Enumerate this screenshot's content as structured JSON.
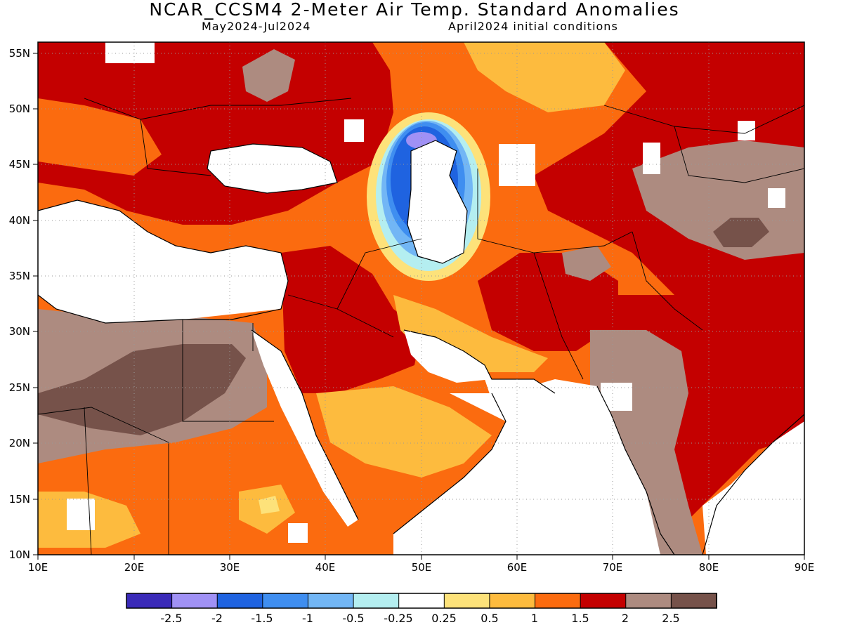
{
  "header": {
    "title": "NCAR_CCSM4 2-Meter Air Temp. Standard Anomalies",
    "period": "May2024-Jul2024",
    "init": "April2024 initial conditions"
  },
  "map": {
    "lon_range": [
      10,
      90
    ],
    "lat_range": [
      10,
      56
    ],
    "lon_ticks": [
      "10E",
      "20E",
      "30E",
      "40E",
      "50E",
      "60E",
      "70E",
      "80E",
      "90E"
    ],
    "lat_ticks": [
      "10N",
      "15N",
      "20N",
      "25N",
      "30N",
      "35N",
      "40N",
      "45N",
      "50N",
      "55N"
    ],
    "grid": "dotted"
  },
  "colorbar": {
    "labels": [
      "-2.5",
      "-2",
      "-1.5",
      "-1",
      "-0.5",
      "-0.25",
      "0.25",
      "0.5",
      "1",
      "1.5",
      "2",
      "2.5"
    ],
    "colors": [
      "#3a2ab8",
      "#a091f5",
      "#1f63e0",
      "#3f8ef0",
      "#72b6f5",
      "#b4eef0",
      "#ffffff",
      "#fde27a",
      "#fdbb3e",
      "#fb6b0f",
      "#c40000",
      "#ad8b80",
      "#76524a"
    ]
  }
}
